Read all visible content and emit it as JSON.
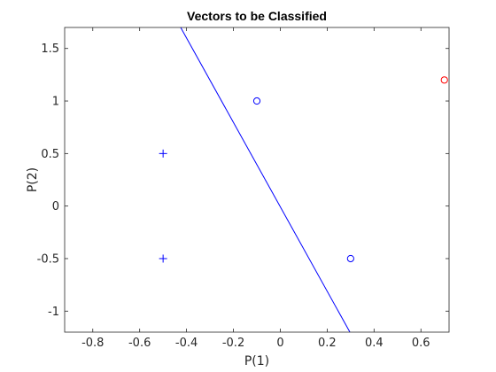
{
  "chart_data": {
    "type": "scatter",
    "title": "Vectors to be Classified",
    "xlabel": "P(1)",
    "ylabel": "P(2)",
    "xlim": [
      -0.92,
      0.72
    ],
    "ylim": [
      -1.2,
      1.7
    ],
    "xticks": [
      "-0.8",
      "-0.6",
      "-0.4",
      "-0.2",
      "0",
      "0.2",
      "0.4",
      "0.6"
    ],
    "yticks": [
      "-1",
      "-0.5",
      "0",
      "0.5",
      "1",
      "1.5"
    ],
    "grid": false,
    "legend": "none",
    "series": [
      {
        "marker": "plus",
        "color": "#0000ff",
        "points": [
          [
            -0.5,
            0.5
          ],
          [
            -0.5,
            -0.5
          ]
        ]
      },
      {
        "marker": "circle",
        "color": "#0000ff",
        "points": [
          [
            -0.1,
            1.0
          ],
          [
            0.3,
            -0.5
          ]
        ]
      },
      {
        "marker": "circle",
        "color": "#ff0000",
        "points": [
          [
            0.7,
            1.2
          ]
        ]
      }
    ],
    "boundary_line": {
      "color": "#0000ff",
      "points": [
        [
          -0.425,
          1.7
        ],
        [
          0.297,
          -1.2
        ]
      ]
    }
  }
}
